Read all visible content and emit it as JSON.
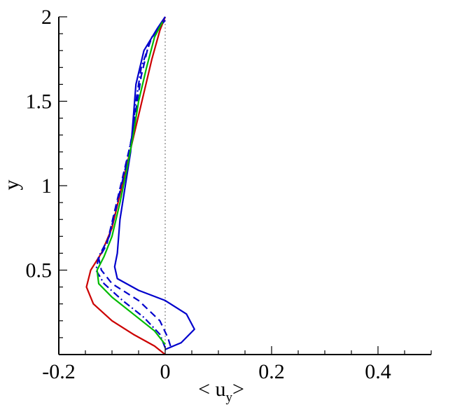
{
  "chart_data": {
    "type": "line",
    "xlabel_main": "< u",
    "xlabel_sub": "y",
    "xlabel_close": ">",
    "ylabel": "y",
    "xlim": [
      -0.2,
      0.5
    ],
    "ylim": [
      0,
      2
    ],
    "xticks": [
      -0.2,
      0,
      0.2,
      0.4
    ],
    "xtick_labels": [
      "-0.2",
      "0",
      "0.2",
      "0.4"
    ],
    "yticks": [
      0.5,
      1,
      1.5,
      2
    ],
    "ytick_labels": [
      "0.5",
      "1",
      "1.5",
      "2"
    ],
    "reference_line": {
      "x": 0,
      "style": "dotted",
      "color": "#808080"
    },
    "legend": "none",
    "grid": false,
    "series": [
      {
        "color": "#cc0000",
        "dash": "solid",
        "points": [
          [
            0,
            0
          ],
          [
            -0.02,
            0.05
          ],
          [
            -0.06,
            0.12
          ],
          [
            -0.1,
            0.2
          ],
          [
            -0.135,
            0.3
          ],
          [
            -0.148,
            0.4
          ],
          [
            -0.14,
            0.5
          ],
          [
            -0.12,
            0.6
          ],
          [
            -0.1,
            0.75
          ],
          [
            -0.085,
            0.95
          ],
          [
            -0.07,
            1.15
          ],
          [
            -0.055,
            1.35
          ],
          [
            -0.04,
            1.55
          ],
          [
            -0.025,
            1.75
          ],
          [
            -0.01,
            1.92
          ],
          [
            0,
            2
          ]
        ]
      },
      {
        "color": "#0000cc",
        "dash": "solid",
        "points": [
          [
            0,
            0.03
          ],
          [
            0.03,
            0.07
          ],
          [
            0.055,
            0.15
          ],
          [
            0.04,
            0.24
          ],
          [
            0,
            0.32
          ],
          [
            -0.05,
            0.38
          ],
          [
            -0.09,
            0.45
          ],
          [
            -0.095,
            0.52
          ],
          [
            -0.09,
            0.6
          ],
          [
            -0.085,
            0.8
          ],
          [
            -0.075,
            1.0
          ],
          [
            -0.065,
            1.2
          ],
          [
            -0.06,
            1.4
          ],
          [
            -0.055,
            1.6
          ],
          [
            -0.04,
            1.8
          ],
          [
            -0.015,
            1.93
          ],
          [
            0,
            2
          ]
        ]
      },
      {
        "color": "#0000cc",
        "dash": "dashed",
        "points": [
          [
            0.01,
            0.05
          ],
          [
            0.005,
            0.1
          ],
          [
            -0.01,
            0.2
          ],
          [
            -0.05,
            0.32
          ],
          [
            -0.1,
            0.42
          ],
          [
            -0.12,
            0.5
          ],
          [
            -0.125,
            0.57
          ],
          [
            -0.11,
            0.65
          ],
          [
            -0.095,
            0.85
          ],
          [
            -0.08,
            1.05
          ],
          [
            -0.065,
            1.25
          ],
          [
            -0.055,
            1.45
          ],
          [
            -0.045,
            1.65
          ],
          [
            -0.03,
            1.85
          ],
          [
            -0.005,
            1.97
          ]
        ]
      },
      {
        "color": "#0000cc",
        "dash": "dashdot",
        "points": [
          [
            0,
            0.04
          ],
          [
            -0.01,
            0.12
          ],
          [
            -0.04,
            0.22
          ],
          [
            -0.08,
            0.32
          ],
          [
            -0.115,
            0.42
          ],
          [
            -0.13,
            0.5
          ],
          [
            -0.125,
            0.58
          ],
          [
            -0.105,
            0.7
          ],
          [
            -0.09,
            0.9
          ],
          [
            -0.075,
            1.1
          ],
          [
            -0.062,
            1.3
          ],
          [
            -0.055,
            1.5
          ],
          [
            -0.045,
            1.7
          ],
          [
            -0.025,
            1.88
          ],
          [
            0,
            1.98
          ]
        ]
      },
      {
        "color": "#00bb00",
        "dash": "solid",
        "points": [
          [
            0,
            0.06
          ],
          [
            -0.02,
            0.14
          ],
          [
            -0.06,
            0.24
          ],
          [
            -0.1,
            0.34
          ],
          [
            -0.125,
            0.42
          ],
          [
            -0.128,
            0.5
          ],
          [
            -0.115,
            0.58
          ],
          [
            -0.1,
            0.7
          ],
          [
            -0.085,
            0.9
          ],
          [
            -0.072,
            1.1
          ],
          [
            -0.06,
            1.3
          ],
          [
            -0.05,
            1.5
          ],
          [
            -0.035,
            1.7
          ],
          [
            -0.02,
            1.88
          ],
          [
            -0.005,
            1.97
          ]
        ]
      }
    ]
  }
}
